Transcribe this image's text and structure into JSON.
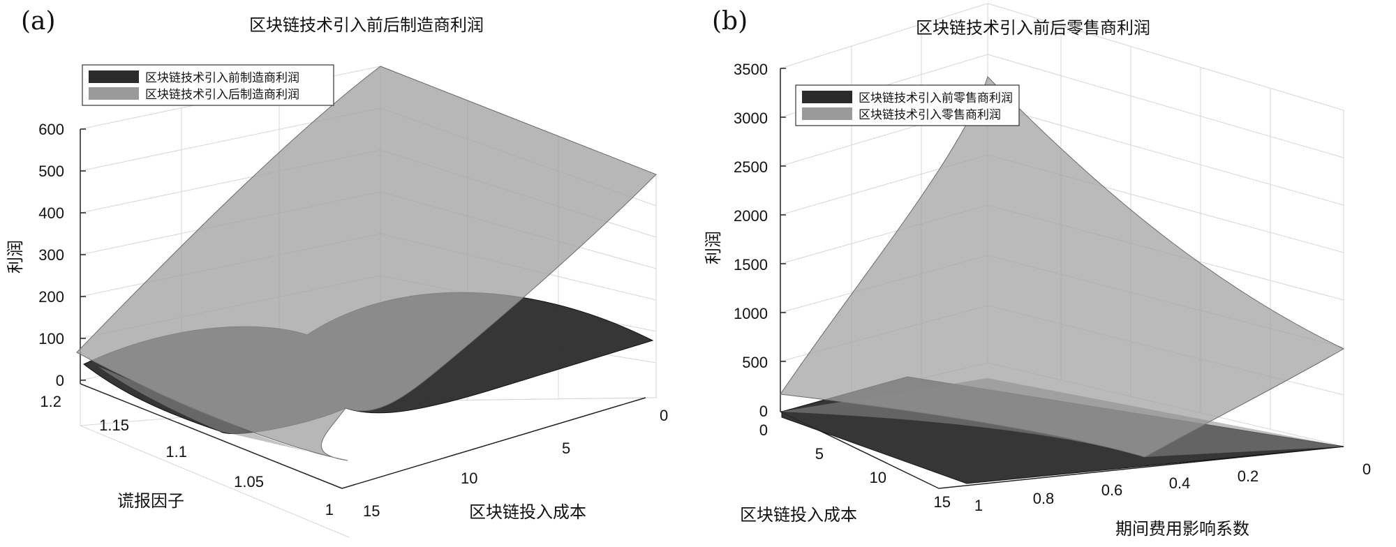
{
  "chart_data": [
    {
      "panel_tag": "(a)",
      "type": "surface3d",
      "title": "区块链技术引入前后制造商利润",
      "xlabel": "区块链投入成本",
      "ylabel": "谎报因子",
      "zlabel": "利润",
      "x_ticks": [
        "0",
        "5",
        "10",
        "15"
      ],
      "y_ticks": [
        "1",
        "1.05",
        "1.1",
        "1.15",
        "1.2"
      ],
      "z_ticks": [
        "0",
        "100",
        "200",
        "300",
        "400",
        "500",
        "600"
      ],
      "xlim": [
        0,
        15
      ],
      "ylim": [
        1,
        1.2
      ],
      "zlim": [
        0,
        600
      ],
      "legend_position": "top-left",
      "series": [
        {
          "name": "区块链技术引入前制造商利润",
          "color": "#2b2b2b",
          "corners": {
            "x0_y1": 15,
            "x0_y1.2": 95,
            "x15_y1": 0,
            "x15_y1.2": 0
          },
          "peak": 265
        },
        {
          "name": "区块链技术引入后制造商利润",
          "color": "#9a9a9a",
          "corners": {
            "x0_y1": 70,
            "x0_y1.2": 500,
            "x15_y1": 0,
            "x15_y1.2": 600
          }
        }
      ]
    },
    {
      "panel_tag": "(b)",
      "type": "surface3d",
      "title": "区块链技术引入前后零售商利润",
      "xlabel": "区块链投入成本",
      "ylabel": "期间费用影响系数",
      "zlabel": "利润",
      "x_ticks": [
        "0",
        "5",
        "10",
        "15"
      ],
      "y_ticks": [
        "0",
        "0.2",
        "0.4",
        "0.6",
        "0.8",
        "1"
      ],
      "z_ticks": [
        "0",
        "500",
        "1000",
        "1500",
        "2000",
        "2500",
        "3000",
        "3500"
      ],
      "xlim": [
        0,
        15
      ],
      "ylim": [
        0,
        1
      ],
      "zlim": [
        0,
        3500
      ],
      "legend_position": "top-left",
      "series": [
        {
          "name": "区块链技术引入前零售商利润",
          "color": "#2b2b2b",
          "corners": {
            "x0_y0": 0,
            "x0_y1": 90,
            "x15_y0": 0,
            "x15_y1": 0
          }
        },
        {
          "name": "区块链技术引入零售商利润",
          "color": "#9a9a9a",
          "corners": {
            "x0_y0": 200,
            "x0_y1": 3400,
            "x15_y0": 0,
            "x15_y1": 500
          }
        }
      ]
    }
  ]
}
